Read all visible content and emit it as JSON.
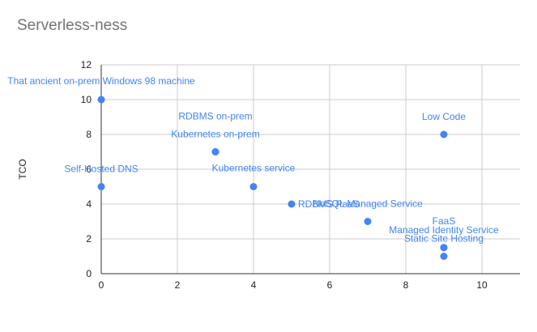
{
  "chart_data": {
    "type": "scatter",
    "title": "Serverless-ness",
    "xlabel": "",
    "ylabel": "TCO",
    "xlim": [
      0,
      11
    ],
    "ylim": [
      0,
      12
    ],
    "x_ticks": [
      0,
      2,
      4,
      6,
      8,
      10
    ],
    "y_ticks": [
      0,
      2,
      4,
      6,
      8,
      10,
      12
    ],
    "grid": true,
    "legend": "none",
    "point_color": "#4285f4",
    "label_color": "#4285f4",
    "points": [
      {
        "x": 0,
        "y": 10,
        "label": "That ancient on-prem Windows 98 machine"
      },
      {
        "x": 0,
        "y": 5,
        "label": "Self-Hosted DNS"
      },
      {
        "x": 3,
        "y": 7,
        "label": "RDBMS on-prem"
      },
      {
        "x": 3,
        "y": 7,
        "label": "Kubernetes on-prem"
      },
      {
        "x": 4,
        "y": 5,
        "label": "Kubernetes service"
      },
      {
        "x": 5,
        "y": 4,
        "label": "RDBMS PaaS"
      },
      {
        "x": 7,
        "y": 3,
        "label": "NoSQL Managed Service"
      },
      {
        "x": 9,
        "y": 8,
        "label": "Low Code"
      },
      {
        "x": 9,
        "y": 1.5,
        "label": "FaaS"
      },
      {
        "x": 9,
        "y": 1.5,
        "label": "Managed Identity Service"
      },
      {
        "x": 9,
        "y": 1,
        "label": "Static Site Hosting"
      }
    ]
  }
}
